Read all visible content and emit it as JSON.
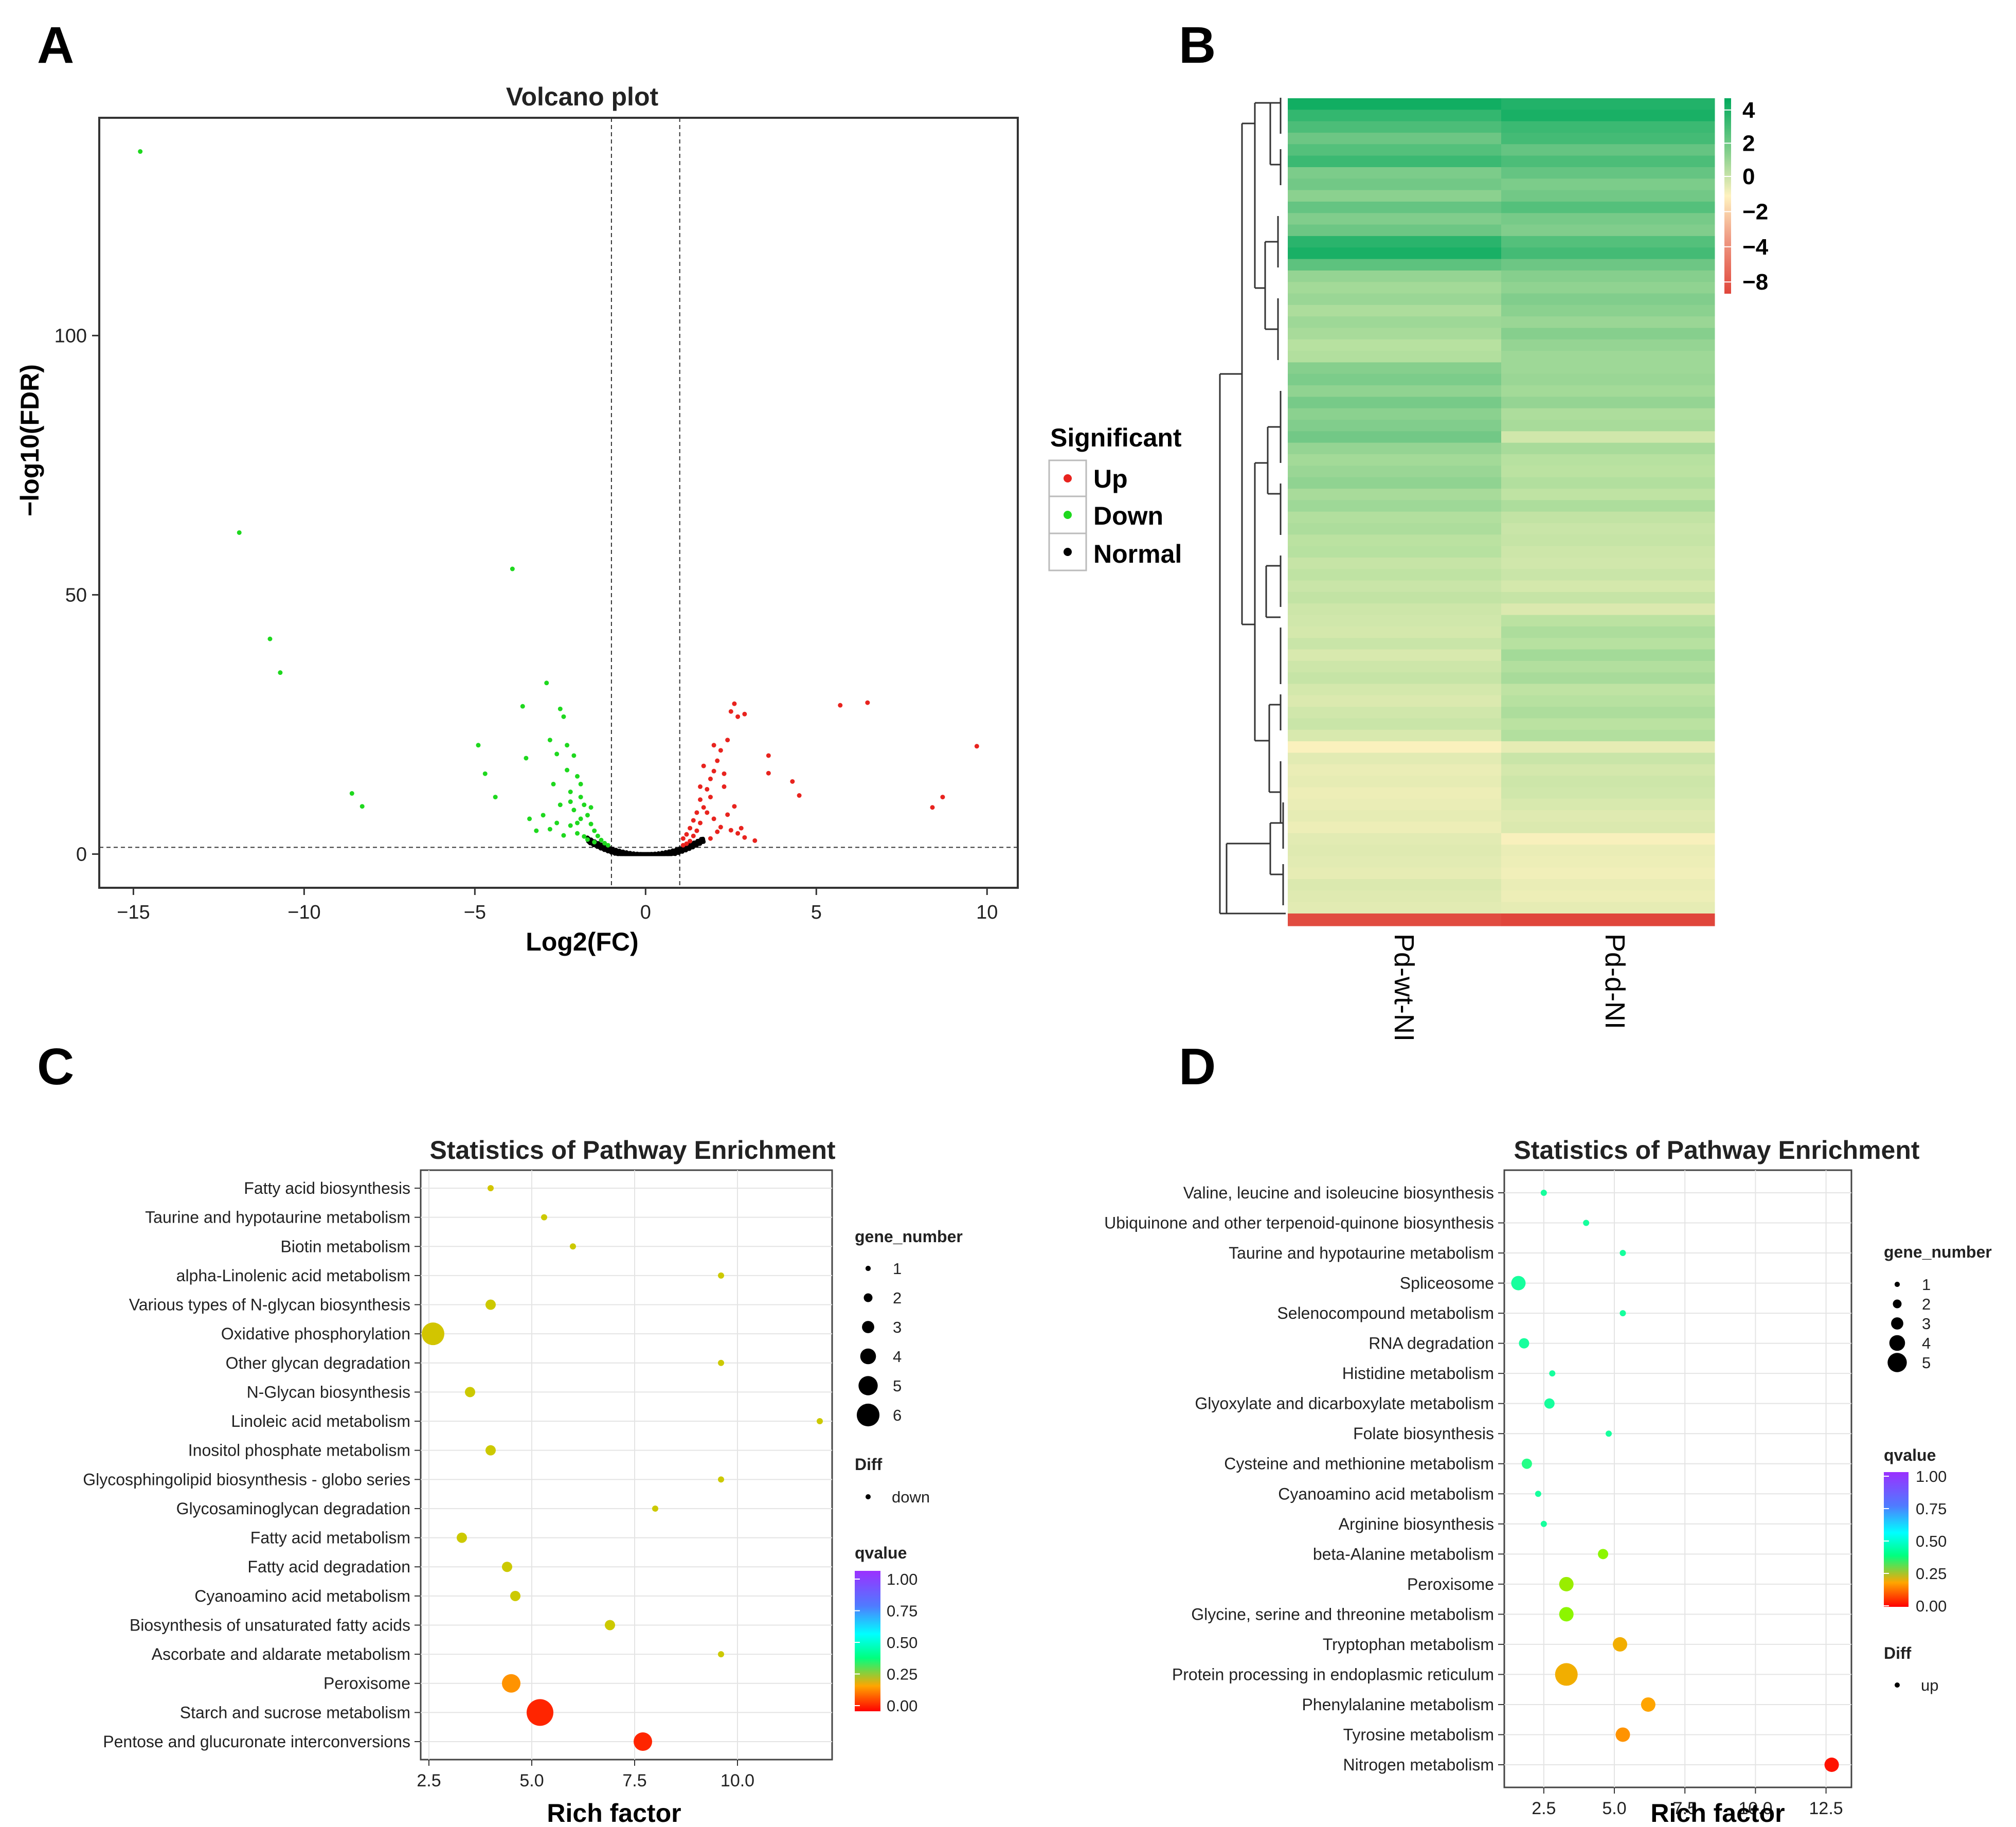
{
  "figure": {
    "panel_labels": [
      "A",
      "B",
      "C",
      "D"
    ]
  },
  "chart_data": [
    {
      "panel": "A",
      "type": "scatter",
      "title": "Volcano plot",
      "xlabel": "Log2(FC)",
      "ylabel": "−log10(FDR)",
      "xlim": [
        -16,
        10.9
      ],
      "ylim": [
        -6.5,
        142
      ],
      "xticks": [
        -15,
        -10,
        -5,
        0,
        5,
        10
      ],
      "xtick_labels": [
        "−15",
        "−10",
        "−5",
        "0",
        "5",
        "10"
      ],
      "yticks": [
        0,
        50,
        100
      ],
      "ytick_labels": [
        "0",
        "50",
        "100"
      ],
      "thresholds": {
        "log2fc": [
          -1,
          1
        ],
        "neg_log10_fdr": 1.3
      },
      "legend": {
        "title": "Significant",
        "items": [
          "Up",
          "Down",
          "Normal"
        ],
        "colors": [
          "#e8231e",
          "#1ed81e",
          "#000000"
        ],
        "position": "right"
      },
      "series": [
        {
          "name": "Up",
          "color": "#e8231e",
          "points": [
            [
              9.7,
              20.8
            ],
            [
              8.7,
              11
            ],
            [
              8.4,
              9
            ],
            [
              6.5,
              29.2
            ],
            [
              5.7,
              28.7
            ],
            [
              4.5,
              11.3
            ],
            [
              4.3,
              14
            ],
            [
              3.6,
              15.6
            ],
            [
              3.6,
              19
            ],
            [
              2.9,
              27
            ],
            [
              2.7,
              26.5
            ],
            [
              2.6,
              29
            ],
            [
              2.5,
              27.5
            ],
            [
              2.4,
              22
            ],
            [
              2.3,
              13
            ],
            [
              2.2,
              20
            ],
            [
              2.1,
              18
            ],
            [
              2.0,
              16
            ],
            [
              2.0,
              21
            ],
            [
              1.9,
              11
            ],
            [
              1.9,
              14.5
            ],
            [
              1.8,
              8
            ],
            [
              1.8,
              12.5
            ],
            [
              1.7,
              9
            ],
            [
              1.7,
              17
            ],
            [
              1.6,
              6
            ],
            [
              1.6,
              10.5
            ],
            [
              1.5,
              4.5
            ],
            [
              1.5,
              8
            ],
            [
              1.4,
              3.5
            ],
            [
              1.4,
              6.5
            ],
            [
              1.3,
              2.5
            ],
            [
              1.3,
              5
            ],
            [
              1.2,
              2
            ],
            [
              1.2,
              3.8
            ],
            [
              1.1,
              1.7
            ],
            [
              1.1,
              3
            ],
            [
              2.2,
              5.2
            ],
            [
              2.5,
              4.6
            ],
            [
              2.7,
              4.0
            ],
            [
              2.9,
              3.2
            ],
            [
              3.2,
              2.6
            ],
            [
              2.0,
              6.8
            ],
            [
              2.4,
              7.6
            ],
            [
              2.8,
              5.0
            ],
            [
              1.9,
              3.0
            ],
            [
              2.1,
              4.3
            ],
            [
              2.6,
              9.2
            ],
            [
              2.3,
              15.5
            ],
            [
              1.6,
              13.0
            ]
          ]
        },
        {
          "name": "Down",
          "color": "#1ed81e",
          "points": [
            [
              -14.8,
              135.5
            ],
            [
              -11.9,
              62
            ],
            [
              -11.0,
              41.5
            ],
            [
              -10.7,
              35
            ],
            [
              -8.6,
              11.7
            ],
            [
              -8.3,
              9.2
            ],
            [
              -4.9,
              21
            ],
            [
              -4.7,
              15.5
            ],
            [
              -4.4,
              11
            ],
            [
              -3.9,
              55
            ],
            [
              -3.6,
              28.5
            ],
            [
              -3.5,
              18.5
            ],
            [
              -3.2,
              4.5
            ],
            [
              -3.0,
              7.5
            ],
            [
              -2.9,
              33
            ],
            [
              -2.8,
              22
            ],
            [
              -2.7,
              13.5
            ],
            [
              -2.6,
              19.3
            ],
            [
              -2.5,
              28
            ],
            [
              -2.5,
              9.5
            ],
            [
              -2.4,
              26.5
            ],
            [
              -2.3,
              21
            ],
            [
              -2.3,
              16.2
            ],
            [
              -2.2,
              5.5
            ],
            [
              -2.2,
              12
            ],
            [
              -2.1,
              19
            ],
            [
              -2.1,
              8.5
            ],
            [
              -2.0,
              15
            ],
            [
              -2.0,
              4
            ],
            [
              -1.9,
              11
            ],
            [
              -1.9,
              6.8
            ],
            [
              -1.8,
              9.5
            ],
            [
              -1.8,
              3.4
            ],
            [
              -1.7,
              7.5
            ],
            [
              -1.7,
              2.8
            ],
            [
              -1.6,
              5.8
            ],
            [
              -1.5,
              4.5
            ],
            [
              -1.5,
              2.3
            ],
            [
              -1.4,
              3.5
            ],
            [
              -1.3,
              2.7
            ],
            [
              -1.2,
              2.1
            ],
            [
              -1.1,
              1.7
            ],
            [
              -2.6,
              6.0
            ],
            [
              -2.4,
              3.6
            ],
            [
              -2.8,
              4.8
            ],
            [
              -3.4,
              6.8
            ],
            [
              -1.9,
              13.5
            ],
            [
              -2.2,
              10.1
            ],
            [
              -1.6,
              9.0
            ],
            [
              -2.0,
              6.0
            ]
          ]
        }
      ],
      "normal_cluster": {
        "name": "Normal",
        "color": "#000000",
        "x_range": [
          -1.7,
          1.7
        ]
      }
    },
    {
      "panel": "B",
      "type": "heatmap",
      "columns": [
        "Pd-wt-NI",
        "Pd-d-NI"
      ],
      "colorbar": {
        "ticks": [
          4,
          2,
          0,
          -2,
          -4,
          -8
        ],
        "tick_labels": [
          "4",
          "2",
          "0",
          "−2",
          "−4",
          "−8"
        ],
        "range": [
          -8,
          4.8
        ],
        "colors": [
          "#e0463b",
          "#fff2bf",
          "#00a95c"
        ]
      },
      "rows": [
        [
          4.6,
          4.4
        ],
        [
          4.2,
          4.5
        ],
        [
          3.9,
          4.1
        ],
        [
          3.5,
          4.0
        ],
        [
          3.8,
          3.6
        ],
        [
          4.1,
          3.9
        ],
        [
          3.2,
          3.6
        ],
        [
          3.4,
          3.2
        ],
        [
          2.9,
          3.4
        ],
        [
          3.6,
          3.8
        ],
        [
          3.1,
          3.3
        ],
        [
          3.5,
          3.1
        ],
        [
          4.3,
          3.8
        ],
        [
          4.5,
          4.0
        ],
        [
          3.7,
          3.5
        ],
        [
          2.7,
          3.0
        ],
        [
          2.4,
          2.8
        ],
        [
          2.6,
          3.1
        ],
        [
          2.2,
          2.9
        ],
        [
          2.5,
          2.6
        ],
        [
          2.3,
          3.0
        ],
        [
          2.0,
          2.7
        ],
        [
          2.1,
          2.5
        ],
        [
          3.0,
          2.5
        ],
        [
          3.2,
          2.6
        ],
        [
          2.8,
          2.4
        ],
        [
          3.3,
          2.7
        ],
        [
          2.9,
          2.2
        ],
        [
          3.1,
          2.3
        ],
        [
          3.4,
          1.3
        ],
        [
          2.7,
          2.3
        ],
        [
          2.4,
          2.0
        ],
        [
          2.6,
          1.9
        ],
        [
          2.8,
          2.1
        ],
        [
          2.3,
          1.8
        ],
        [
          2.5,
          2.2
        ],
        [
          2.1,
          1.7
        ],
        [
          2.2,
          1.5
        ],
        [
          1.9,
          1.6
        ],
        [
          2.0,
          1.4
        ],
        [
          1.6,
          1.3
        ],
        [
          1.8,
          1.5
        ],
        [
          1.5,
          1.2
        ],
        [
          1.7,
          1.6
        ],
        [
          1.4,
          1.0
        ],
        [
          1.3,
          1.9
        ],
        [
          1.2,
          2.2
        ],
        [
          1.5,
          2.0
        ],
        [
          1.1,
          2.4
        ],
        [
          1.4,
          2.1
        ],
        [
          1.6,
          2.3
        ],
        [
          1.2,
          1.8
        ],
        [
          1.0,
          2.0
        ],
        [
          1.3,
          2.2
        ],
        [
          1.5,
          1.9
        ],
        [
          1.1,
          2.1
        ],
        [
          0.15,
          0.7
        ],
        [
          0.8,
          1.5
        ],
        [
          0.6,
          1.2
        ],
        [
          0.7,
          1.4
        ],
        [
          0.5,
          1.3
        ],
        [
          0.6,
          1.1
        ],
        [
          0.7,
          0.9
        ],
        [
          0.5,
          1.0
        ],
        [
          0.8,
          0.2
        ],
        [
          0.9,
          0.6
        ],
        [
          0.8,
          0.5
        ],
        [
          0.7,
          0.4
        ],
        [
          1.0,
          0.6
        ],
        [
          0.9,
          0.5
        ],
        [
          0.8,
          0.7
        ],
        [
          -7.5,
          -8.0
        ]
      ]
    },
    {
      "panel": "C",
      "type": "scatter",
      "title": "Statistics of Pathway Enrichment",
      "xlabel": "Rich factor",
      "ylabel": "",
      "xlim": [
        2.3,
        12.3
      ],
      "xticks": [
        2.5,
        5.0,
        7.5,
        10.0
      ],
      "xtick_labels": [
        "2.5",
        "5.0",
        "7.5",
        "10.0"
      ],
      "categories": [
        "Fatty acid biosynthesis",
        "Taurine and hypotaurine metabolism",
        "Biotin metabolism",
        "alpha-Linolenic acid metabolism",
        "Various types of N-glycan biosynthesis",
        "Oxidative phosphorylation",
        "Other glycan degradation",
        "N-Glycan biosynthesis",
        "Linoleic acid metabolism",
        "Inositol phosphate metabolism",
        "Glycosphingolipid biosynthesis - globo series",
        "Glycosaminoglycan degradation",
        "Fatty acid metabolism",
        "Fatty acid degradation",
        "Cyanoamino acid metabolism",
        "Biosynthesis of unsaturated fatty acids",
        "Ascorbate and aldarate metabolism",
        "Peroxisome",
        "Starch and sucrose metabolism",
        "Pentose and glucuronate interconversions"
      ],
      "rich_factor": [
        4.0,
        5.3,
        6.0,
        9.6,
        4.0,
        2.6,
        9.6,
        3.5,
        12.0,
        4.0,
        9.6,
        8.0,
        3.3,
        4.4,
        4.6,
        6.9,
        9.6,
        4.5,
        5.2,
        7.7
      ],
      "gene_number": [
        1,
        1,
        1,
        1,
        2,
        5,
        1,
        2,
        1,
        2,
        1,
        1,
        2,
        2,
        2,
        2,
        1,
        4,
        6,
        4
      ],
      "qvalue": [
        0.25,
        0.26,
        0.26,
        0.26,
        0.26,
        0.25,
        0.26,
        0.26,
        0.26,
        0.26,
        0.26,
        0.26,
        0.26,
        0.26,
        0.26,
        0.26,
        0.26,
        0.16,
        0.04,
        0.04
      ],
      "size_legend": {
        "title": "gene_number",
        "values": [
          1,
          2,
          3,
          4,
          5,
          6
        ]
      },
      "diff_legend": {
        "title": "Diff",
        "label": "down"
      },
      "qvalue_legend": {
        "title": "qvalue",
        "ticks": [
          "1.00",
          "0.75",
          "0.50",
          "0.25",
          "0.00"
        ]
      }
    },
    {
      "panel": "D",
      "type": "scatter",
      "title": "Statistics of Pathway Enrichment",
      "xlabel": "Rich factor",
      "ylabel": "",
      "xlim": [
        1.1,
        13.4
      ],
      "xticks": [
        2.5,
        5.0,
        7.5,
        10.0,
        12.5
      ],
      "xtick_labels": [
        "2.5",
        "5.0",
        "7.5",
        "10.0",
        "12.5"
      ],
      "categories": [
        "Valine, leucine and isoleucine biosynthesis",
        "Ubiquinone and other terpenoid-quinone biosynthesis",
        "Taurine and hypotaurine metabolism",
        "Spliceosome",
        "Selenocompound metabolism",
        "RNA degradation",
        "Histidine metabolism",
        "Glyoxylate and dicarboxylate metabolism",
        "Folate biosynthesis",
        "Cysteine and methionine metabolism",
        "Cyanoamino acid metabolism",
        "Arginine biosynthesis",
        "beta-Alanine metabolism",
        "Peroxisome",
        "Glycine, serine and threonine metabolism",
        "Tryptophan metabolism",
        "Protein processing in endoplasmic reticulum",
        "Phenylalanine metabolism",
        "Tyrosine metabolism",
        "Nitrogen metabolism"
      ],
      "rich_factor": [
        2.5,
        4.0,
        5.3,
        1.6,
        5.3,
        1.8,
        2.8,
        2.7,
        4.8,
        1.9,
        2.3,
        2.5,
        4.6,
        3.3,
        3.3,
        5.2,
        3.3,
        6.2,
        5.3,
        12.7
      ],
      "gene_number": [
        1,
        1,
        1,
        3,
        1,
        2,
        1,
        2,
        1,
        2,
        1,
        1,
        2,
        3,
        3,
        3,
        5,
        3,
        3,
        3
      ],
      "qvalue": [
        0.52,
        0.52,
        0.52,
        0.52,
        0.52,
        0.52,
        0.52,
        0.52,
        0.52,
        0.5,
        0.52,
        0.52,
        0.36,
        0.34,
        0.36,
        0.2,
        0.2,
        0.18,
        0.16,
        0.02
      ],
      "size_legend": {
        "title": "gene_number",
        "values": [
          1,
          2,
          3,
          4,
          5
        ]
      },
      "diff_legend": {
        "title": "Diff",
        "label": "up"
      },
      "qvalue_legend": {
        "title": "qvalue",
        "ticks": [
          "1.00",
          "0.75",
          "0.50",
          "0.25",
          "0.00"
        ]
      }
    }
  ]
}
